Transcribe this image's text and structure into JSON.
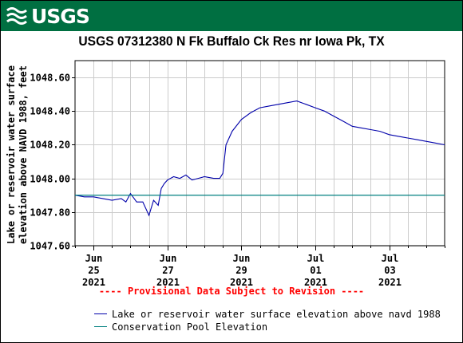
{
  "banner": {
    "logo_text": "USGS",
    "color": "#006f41"
  },
  "chart_data": {
    "type": "line",
    "title": "USGS 07312380 N Fk Buffalo Ck Res nr Iowa Pk, TX",
    "ylabel": "Lake or reservoir water surface elevation above NAVD 1988, feet",
    "xlabel": "",
    "ylim": [
      1047.6,
      1048.7
    ],
    "xlim": [
      "2021-06-24T12:00",
      "2021-07-04T12:00"
    ],
    "grid": true,
    "y_ticks": [
      {
        "value": 1047.6,
        "label": "1047.60"
      },
      {
        "value": 1047.8,
        "label": "1047.80"
      },
      {
        "value": 1048.0,
        "label": "1048.00"
      },
      {
        "value": 1048.2,
        "label": "1048.20"
      },
      {
        "value": 1048.4,
        "label": "1048.40"
      },
      {
        "value": 1048.6,
        "label": "1048.60"
      }
    ],
    "x_ticks": [
      {
        "x": "2021-06-25T00:00",
        "lines": [
          "Jun",
          "25",
          "2021"
        ]
      },
      {
        "x": "2021-06-27T00:00",
        "lines": [
          "Jun",
          "27",
          "2021"
        ]
      },
      {
        "x": "2021-06-29T00:00",
        "lines": [
          "Jun",
          "29",
          "2021"
        ]
      },
      {
        "x": "2021-07-01T00:00",
        "lines": [
          "Jul",
          "01",
          "2021"
        ]
      },
      {
        "x": "2021-07-03T00:00",
        "lines": [
          "Jul",
          "03",
          "2021"
        ]
      }
    ],
    "series": [
      {
        "name": "Lake or reservoir water surface elevation above navd 1988",
        "color": "#0000aa",
        "points": [
          [
            "2021-06-24T12:00",
            1047.9
          ],
          [
            "2021-06-24T18:00",
            1047.89
          ],
          [
            "2021-06-25T00:00",
            1047.89
          ],
          [
            "2021-06-25T06:00",
            1047.88
          ],
          [
            "2021-06-25T12:00",
            1047.87
          ],
          [
            "2021-06-25T18:00",
            1047.88
          ],
          [
            "2021-06-25T21:00",
            1047.86
          ],
          [
            "2021-06-26T00:00",
            1047.91
          ],
          [
            "2021-06-26T04:00",
            1047.86
          ],
          [
            "2021-06-26T08:00",
            1047.86
          ],
          [
            "2021-06-26T12:00",
            1047.78
          ],
          [
            "2021-06-26T15:00",
            1047.87
          ],
          [
            "2021-06-26T18:00",
            1047.84
          ],
          [
            "2021-06-26T20:00",
            1047.94
          ],
          [
            "2021-06-26T22:00",
            1047.97
          ],
          [
            "2021-06-27T00:00",
            1047.99
          ],
          [
            "2021-06-27T04:00",
            1048.01
          ],
          [
            "2021-06-27T08:00",
            1048.0
          ],
          [
            "2021-06-27T12:00",
            1048.02
          ],
          [
            "2021-06-27T16:00",
            1047.99
          ],
          [
            "2021-06-27T20:00",
            1048.0
          ],
          [
            "2021-06-28T00:00",
            1048.01
          ],
          [
            "2021-06-28T06:00",
            1048.0
          ],
          [
            "2021-06-28T10:00",
            1048.0
          ],
          [
            "2021-06-28T12:00",
            1048.03
          ],
          [
            "2021-06-28T14:00",
            1048.2
          ],
          [
            "2021-06-28T18:00",
            1048.28
          ],
          [
            "2021-06-29T00:00",
            1048.35
          ],
          [
            "2021-06-29T06:00",
            1048.39
          ],
          [
            "2021-06-29T12:00",
            1048.42
          ],
          [
            "2021-06-29T18:00",
            1048.43
          ],
          [
            "2021-06-30T00:00",
            1048.44
          ],
          [
            "2021-06-30T06:00",
            1048.45
          ],
          [
            "2021-06-30T12:00",
            1048.46
          ],
          [
            "2021-06-30T18:00",
            1048.44
          ],
          [
            "2021-07-01T00:00",
            1048.42
          ],
          [
            "2021-07-01T06:00",
            1048.4
          ],
          [
            "2021-07-01T12:00",
            1048.37
          ],
          [
            "2021-07-01T18:00",
            1048.34
          ],
          [
            "2021-07-02T00:00",
            1048.31
          ],
          [
            "2021-07-02T06:00",
            1048.3
          ],
          [
            "2021-07-02T12:00",
            1048.29
          ],
          [
            "2021-07-02T18:00",
            1048.28
          ],
          [
            "2021-07-03T00:00",
            1048.26
          ],
          [
            "2021-07-03T06:00",
            1048.25
          ],
          [
            "2021-07-03T12:00",
            1048.24
          ],
          [
            "2021-07-03T18:00",
            1048.23
          ],
          [
            "2021-07-04T00:00",
            1048.22
          ],
          [
            "2021-07-04T06:00",
            1048.21
          ],
          [
            "2021-07-04T12:00",
            1048.2
          ]
        ]
      },
      {
        "name": "Conservation Pool Elevation",
        "color": "#007f7f",
        "constant": 1047.9
      }
    ]
  },
  "provisional_note": "---- Provisional Data Subject to Revision ----"
}
